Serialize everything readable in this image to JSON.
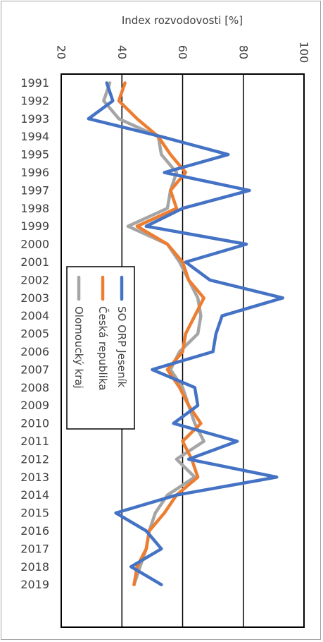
{
  "chart_data": {
    "type": "line",
    "orientation": "rotated",
    "title": "",
    "xlabel": "",
    "ylabel": "Index rozvodovosti [%]",
    "ylim": [
      20,
      100
    ],
    "yticks": [
      20,
      40,
      60,
      80,
      100
    ],
    "grid": true,
    "legend_position": "middle-left",
    "categories": [
      "1991",
      "1992",
      "1993",
      "1994",
      "1995",
      "1996",
      "1997",
      "1998",
      "1999",
      "2000",
      "2001",
      "2002",
      "2003",
      "2004",
      "2005",
      "2006",
      "2007",
      "2008",
      "2009",
      "2010",
      "2011",
      "2012",
      "2013",
      "2014",
      "2015",
      "2016",
      "2017",
      "2018",
      "2019"
    ],
    "series": [
      {
        "name": "SO ORP Jeseník",
        "color": "#4472c4",
        "values": [
          35,
          37,
          29,
          53,
          75,
          54,
          82,
          60,
          48,
          81,
          61,
          69,
          93,
          73,
          71,
          70,
          50,
          64,
          65,
          57,
          78,
          62,
          91,
          58,
          38,
          48,
          53,
          43,
          53
        ]
      },
      {
        "name": "Česká republika",
        "color": "#ed7d31",
        "values": [
          41,
          39,
          45,
          52,
          56,
          61,
          56,
          58,
          45,
          55,
          60,
          62,
          67,
          64,
          61,
          60,
          55,
          59,
          62,
          66,
          60,
          63,
          65,
          58,
          54,
          49,
          48,
          45,
          44
        ]
      },
      {
        "name": "Olomoucký kraj",
        "color": "#a5a5a5",
        "values": [
          36,
          34,
          39,
          52,
          53,
          58,
          56,
          55,
          42,
          55,
          59,
          62,
          65,
          66,
          65,
          59,
          56,
          60,
          62,
          64,
          67,
          58,
          64,
          55,
          51,
          49,
          48,
          46,
          44
        ]
      }
    ]
  }
}
